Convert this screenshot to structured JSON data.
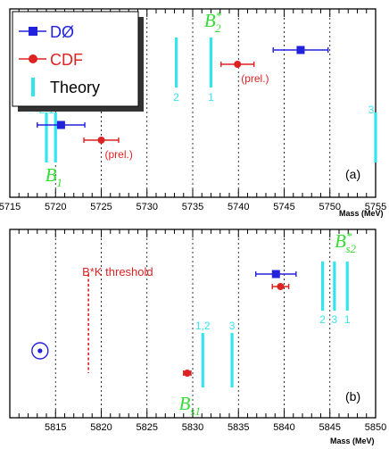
{
  "chart_data": [
    {
      "type": "scatter",
      "panel_label": "(a)",
      "xlabel": "Mass (MeV)",
      "xlim": [
        5715,
        5755
      ],
      "xticks": [
        "5715",
        "5720",
        "5725",
        "5730",
        "5735",
        "5740",
        "5745",
        "5750",
        "5755"
      ],
      "grid": "vertical dotted at each 5 MeV",
      "legend": {
        "placement": "top-left",
        "entries": [
          {
            "name": "DØ",
            "color": "#2222dd",
            "marker": "square"
          },
          {
            "name": "CDF",
            "color": "#dd2222",
            "marker": "circle"
          },
          {
            "name": "Theory",
            "color": "#33e5ee",
            "marker": "bar"
          }
        ]
      },
      "states": [
        {
          "name": "B",
          "sub": "1",
          "sup": "",
          "x": 5720
        },
        {
          "name": "B",
          "sub": "2",
          "sup": "*",
          "x": 5737
        }
      ],
      "theory": [
        {
          "label": "2",
          "x": 5719,
          "row": "low"
        },
        {
          "label": "1",
          "x": 5720,
          "row": "low"
        },
        {
          "label": "2",
          "x": 5733.2,
          "row": "high"
        },
        {
          "label": "1",
          "x": 5737.0,
          "row": "high"
        },
        {
          "label": "3",
          "x": 5755.0,
          "row": "low"
        }
      ],
      "series": [
        {
          "name": "DØ",
          "points": [
            {
              "x": 5720.6,
              "xerr": 2.6,
              "note": ""
            },
            {
              "x": 5746.8,
              "xerr": 3.0,
              "note": ""
            }
          ]
        },
        {
          "name": "CDF",
          "points": [
            {
              "x": 5725.0,
              "xerr": 1.9,
              "note": "(prel.)"
            },
            {
              "x": 5739.9,
              "xerr": 1.8,
              "note": "(prel.)"
            }
          ]
        }
      ]
    },
    {
      "type": "scatter",
      "panel_label": "(b)",
      "xlabel": "Mass (MeV)",
      "xlim": [
        5810,
        5850
      ],
      "xticks": [
        "5815",
        "5820",
        "5825",
        "5830",
        "5835",
        "5840",
        "5845",
        "5850"
      ],
      "grid": "vertical dotted at each 5 MeV",
      "threshold": {
        "x": 5818.6,
        "label": "B*K threshold"
      },
      "symbol": {
        "x": 5813.3,
        "name": "circled-dot"
      },
      "states": [
        {
          "name": "B",
          "sub": "s1",
          "sup": "",
          "x": 5829.5
        },
        {
          "name": "B",
          "sub": "s2",
          "sup": "*",
          "x": 5846.5
        }
      ],
      "theory": [
        {
          "label": "1,2",
          "x": 5831.1,
          "row": "low"
        },
        {
          "label": "3",
          "x": 5834.3,
          "row": "low"
        },
        {
          "label": "2",
          "x": 5844.2,
          "row": "high"
        },
        {
          "label": "3",
          "x": 5845.5,
          "row": "high"
        },
        {
          "label": "1",
          "x": 5846.9,
          "row": "high"
        }
      ],
      "series": [
        {
          "name": "DØ",
          "points": [
            {
              "x": 5839.1,
              "xerr": 2.2,
              "note": ""
            }
          ]
        },
        {
          "name": "CDF",
          "points": [
            {
              "x": 5839.6,
              "xerr": 0.9,
              "note": ""
            },
            {
              "x": 5829.4,
              "xerr": 0.4,
              "note": ""
            }
          ]
        }
      ]
    }
  ]
}
